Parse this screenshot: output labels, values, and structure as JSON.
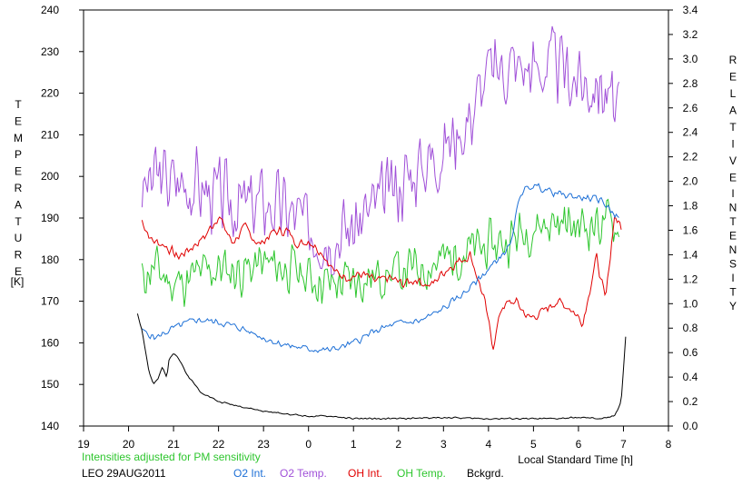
{
  "chart_data": {
    "type": "line",
    "left_axis": {
      "title_letters": [
        "T",
        "E",
        "M",
        "P",
        "E",
        "R",
        "A",
        "T",
        "U",
        "R",
        "E"
      ],
      "unit": "[K]",
      "ylim": [
        140,
        240
      ],
      "ticks": [
        "140",
        "150",
        "160",
        "170",
        "180",
        "190",
        "200",
        "210",
        "220",
        "230",
        "240"
      ]
    },
    "right_axis": {
      "title_letters_1": [
        "R",
        "E",
        "L",
        "A",
        "T",
        "I",
        "V",
        "E"
      ],
      "title_letters_2": [
        "I",
        "N",
        "T",
        "E",
        "N",
        "S",
        "I",
        "T",
        "Y"
      ],
      "ylim": [
        0.0,
        3.4
      ],
      "ticks": [
        "0.0",
        "0.2",
        "0.4",
        "0.6",
        "0.8",
        "1.0",
        "1.2",
        "1.4",
        "1.6",
        "1.8",
        "2.0",
        "2.2",
        "2.4",
        "2.6",
        "2.8",
        "3.0",
        "3.2",
        "3.4"
      ]
    },
    "x_axis": {
      "label": "Local Standard Time [h]",
      "xlim": [
        19,
        32
      ],
      "tick_positions": [
        19,
        20,
        21,
        22,
        23,
        24,
        25,
        26,
        27,
        28,
        29,
        30,
        31,
        32
      ],
      "tick_labels": [
        "19",
        "20",
        "21",
        "22",
        "23",
        "0",
        "1",
        "2",
        "3",
        "4",
        "5",
        "6",
        "7",
        "8"
      ]
    },
    "note": "Intensities adjusted for PM sensitivity",
    "station": "LEO 29AUG2011",
    "legend": [
      {
        "name": "O2 Int.",
        "color": "#1c6fd6"
      },
      {
        "name": "O2 Temp.",
        "color": "#a050d8"
      },
      {
        "name": "OH Int.",
        "color": "#e00000"
      },
      {
        "name": "OH Temp.",
        "color": "#2ec62e"
      },
      {
        "name": "Bckgrd.",
        "color": "#000000"
      }
    ],
    "note_color": "#2ec62e",
    "series": [
      {
        "key": "o2_temp",
        "axis": "left",
        "color": "#a050d8",
        "noise": 11,
        "seed": 3,
        "x": [
          20.3,
          20.6,
          21.0,
          21.5,
          22.0,
          22.5,
          23.0,
          23.5,
          24.0,
          24.5,
          25.0,
          25.5,
          26.0,
          26.5,
          27.0,
          27.5,
          28.0,
          28.5,
          29.0,
          29.5,
          30.0,
          30.5,
          30.9
        ],
        "y": [
          196,
          200,
          199,
          198,
          195,
          193,
          194,
          192,
          188,
          186,
          188,
          193,
          198,
          203,
          207,
          213,
          225,
          227,
          226,
          227,
          223,
          222,
          214
        ]
      },
      {
        "key": "oh_temp",
        "axis": "left",
        "color": "#2ec62e",
        "noise": 7,
        "seed": 11,
        "x": [
          20.3,
          20.6,
          21.0,
          21.5,
          22.0,
          22.5,
          23.0,
          23.5,
          24.0,
          24.5,
          25.0,
          25.5,
          26.0,
          26.5,
          27.0,
          27.5,
          28.0,
          28.5,
          29.0,
          29.5,
          30.0,
          30.5,
          30.9
        ],
        "y": [
          176,
          178,
          174,
          176,
          178,
          177,
          179,
          178,
          176,
          174,
          175,
          176,
          177,
          178,
          180,
          182,
          183,
          185,
          188,
          189,
          188,
          189,
          188
        ]
      },
      {
        "key": "oh_int",
        "axis": "right",
        "color": "#e00000",
        "noise": 0.05,
        "seed": 7,
        "x": [
          20.3,
          20.5,
          20.8,
          21.1,
          21.4,
          21.7,
          22.0,
          22.3,
          22.6,
          22.9,
          23.2,
          23.5,
          23.8,
          24.0,
          24.3,
          24.6,
          24.9,
          25.2,
          25.5,
          25.8,
          26.1,
          26.4,
          26.7,
          27.0,
          27.3,
          27.6,
          27.9,
          28.1,
          28.3,
          28.6,
          28.9,
          29.2,
          29.5,
          29.8,
          30.1,
          30.4,
          30.6,
          30.8,
          30.95
        ],
        "y": [
          1.68,
          1.52,
          1.48,
          1.38,
          1.46,
          1.55,
          1.72,
          1.5,
          1.62,
          1.48,
          1.58,
          1.6,
          1.48,
          1.52,
          1.42,
          1.25,
          1.22,
          1.24,
          1.18,
          1.21,
          1.16,
          1.2,
          1.14,
          1.26,
          1.34,
          1.4,
          1.04,
          0.65,
          0.98,
          1.02,
          0.88,
          0.93,
          1.02,
          0.97,
          0.85,
          1.38,
          1.02,
          1.72,
          1.62
        ]
      },
      {
        "key": "o2_int",
        "axis": "right",
        "color": "#1c6fd6",
        "noise": 0.035,
        "seed": 5,
        "x": [
          20.3,
          20.6,
          21.0,
          21.5,
          22.0,
          22.5,
          23.0,
          23.5,
          24.0,
          24.5,
          25.0,
          25.5,
          26.0,
          26.5,
          27.0,
          27.5,
          28.0,
          28.5,
          28.7,
          29.0,
          29.5,
          30.0,
          30.5,
          30.9
        ],
        "y": [
          0.78,
          0.72,
          0.8,
          0.87,
          0.85,
          0.8,
          0.72,
          0.66,
          0.63,
          0.62,
          0.68,
          0.78,
          0.84,
          0.86,
          0.96,
          1.1,
          1.28,
          1.48,
          1.9,
          1.97,
          1.9,
          1.87,
          1.85,
          1.7
        ]
      },
      {
        "key": "bckgrd",
        "axis": "right",
        "color": "#000000",
        "noise": 0.008,
        "seed": 2,
        "x": [
          20.2,
          20.3,
          20.45,
          20.55,
          20.65,
          20.75,
          20.85,
          20.9,
          21.0,
          21.1,
          21.3,
          21.6,
          22.0,
          22.5,
          23.0,
          23.5,
          24.0,
          24.5,
          25.0,
          26.0,
          27.0,
          28.0,
          29.0,
          29.5,
          30.0,
          30.5,
          30.8,
          30.95,
          31.05
        ],
        "y": [
          0.92,
          0.78,
          0.45,
          0.34,
          0.38,
          0.48,
          0.4,
          0.55,
          0.6,
          0.56,
          0.42,
          0.28,
          0.2,
          0.16,
          0.12,
          0.1,
          0.08,
          0.08,
          0.06,
          0.06,
          0.07,
          0.06,
          0.06,
          0.06,
          0.07,
          0.06,
          0.08,
          0.2,
          0.73
        ]
      }
    ]
  }
}
